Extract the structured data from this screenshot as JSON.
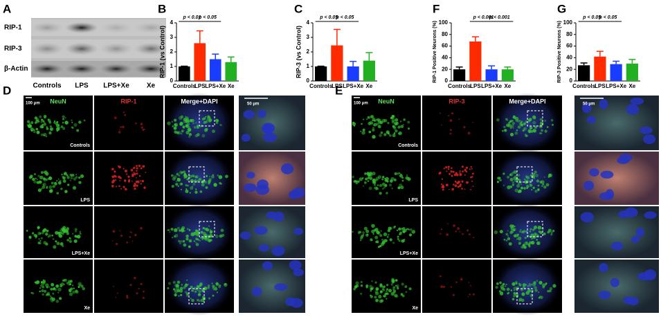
{
  "panel_letters": [
    "A",
    "B",
    "C",
    "D",
    "E",
    "F",
    "G"
  ],
  "blot": {
    "rows": [
      "RIP-1",
      "RIP-3",
      "β-Actin"
    ],
    "lanes": [
      "Controls",
      "LPS",
      "LPS+Xe",
      "Xe"
    ]
  },
  "panel_d": {
    "columns": [
      "NeuN",
      "RIP-1",
      "Merge+DAPI"
    ],
    "rows": [
      "Controls",
      "LPS",
      "LPS+Xe",
      "Xe"
    ],
    "scale_bars": [
      "100 μm",
      "50 μm"
    ]
  },
  "panel_e": {
    "columns": [
      "NeuN",
      "RIP-3",
      "Merge+DAPI"
    ],
    "rows": [
      "Controls",
      "LPS",
      "LPS+Xe",
      "Xe"
    ],
    "scale_bars": [
      "100 μm",
      "50 μm"
    ]
  },
  "chart_data": [
    {
      "type": "bar",
      "y_label": "RIP-1 (vs Control)",
      "categories": [
        "Controls",
        "LPS",
        "LPS+Xe",
        "Xe"
      ],
      "values": [
        1.0,
        2.6,
        1.5,
        1.3
      ],
      "errors": [
        0.02,
        0.85,
        0.35,
        0.35
      ],
      "colors": [
        "#000000",
        "#ff2a00",
        "#1a3cff",
        "#22b022"
      ],
      "ylim": [
        0,
        4
      ],
      "yticks": [
        0,
        1,
        2,
        3,
        4
      ],
      "annotations": [
        "p < 0.01",
        "p < 0.05"
      ]
    },
    {
      "type": "bar",
      "y_label": "RIP-3 (vs Control)",
      "categories": [
        "Controls",
        "LPS",
        "LPS+Xe",
        "Xe"
      ],
      "values": [
        1.0,
        2.45,
        1.0,
        1.4
      ],
      "errors": [
        0.02,
        1.1,
        0.35,
        0.55
      ],
      "colors": [
        "#000000",
        "#ff2a00",
        "#1a3cff",
        "#22b022"
      ],
      "ylim": [
        0,
        4
      ],
      "yticks": [
        0,
        1,
        2,
        3,
        4
      ],
      "annotations": [
        "p < 0.05",
        "p < 0.05"
      ]
    },
    {
      "type": "bar",
      "y_label": "RIP-1 Positive Neurons (%)",
      "categories": [
        "Controls",
        "LPS",
        "LPS+Xe",
        "Xe"
      ],
      "values": [
        20,
        68,
        20,
        20
      ],
      "errors": [
        4,
        8,
        6,
        4
      ],
      "colors": [
        "#000000",
        "#ff2a00",
        "#1a3cff",
        "#22b022"
      ],
      "ylim": [
        0,
        100
      ],
      "yticks": [
        0,
        20,
        40,
        60,
        80,
        100
      ],
      "annotations": [
        "p < 0.001",
        "p < 0.001"
      ]
    },
    {
      "type": "bar",
      "y_label": "RIP-3 Positive Neurons (%)",
      "categories": [
        "Controls",
        "LPS",
        "LPS+Xe",
        "Xe"
      ],
      "values": [
        27,
        42,
        29,
        30
      ],
      "errors": [
        4,
        9,
        5,
        7
      ],
      "colors": [
        "#000000",
        "#ff2a00",
        "#1a3cff",
        "#22b022"
      ],
      "ylim": [
        0,
        100
      ],
      "yticks": [
        0,
        20,
        40,
        60,
        80,
        100
      ],
      "annotations": [
        "p < 0.05",
        "p < 0.05"
      ]
    }
  ]
}
